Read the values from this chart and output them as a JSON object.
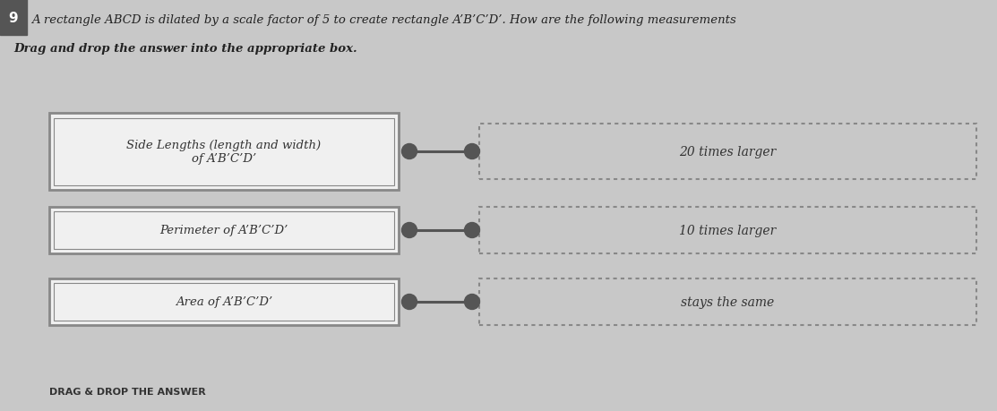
{
  "title": "A rectangle ABCD is dilated by a scale factor of 5 to create rectangle A’B’C’D’. How are the following measurements",
  "subtitle": "Drag and drop the answer into the appropriate box.",
  "question_number": "9",
  "left_boxes": [
    "Side Lengths (length and width)\nof A’B’C’D’",
    "Perimeter of A’B’C’D’",
    "Area of A’B’C’D’"
  ],
  "right_boxes": [
    "20 times larger",
    "10 times larger",
    "stays the same"
  ],
  "drag_drop_label": "DRAG & DROP THE ANSWER",
  "bg_color": "#c8c8c8",
  "left_box_color": "#f0f0f0",
  "left_box_edge_color": "#888888",
  "right_box_edge_color": "#888888",
  "right_box_fill": "#c8c8c8",
  "connector_color": "#555555",
  "dot_color": "#555555",
  "title_color": "#222222",
  "subtitle_color": "#222222",
  "text_color": "#333333",
  "number_bg": "#555555",
  "number_color": "#ffffff"
}
